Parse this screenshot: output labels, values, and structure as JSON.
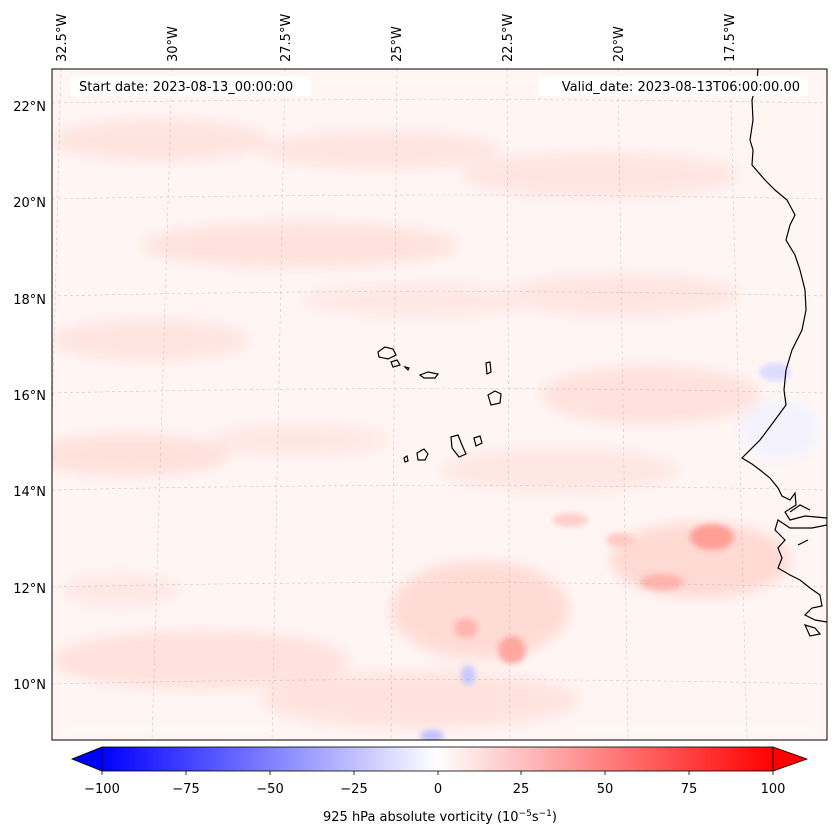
{
  "header": {
    "start_date": "Start date: 2023-08-13_00:00:00",
    "valid_date": "Valid_date: 2023-08-13T06:00:00.00"
  },
  "map": {
    "lon_labels": [
      "32.5°W",
      "30°W",
      "27.5°W",
      "25°W",
      "22.5°W",
      "20°W",
      "17.5°W"
    ],
    "lat_labels": [
      "22°N",
      "20°N",
      "18°N",
      "16°N",
      "14°N",
      "12°N",
      "10°N"
    ]
  },
  "colorbar": {
    "ticks": [
      "−100",
      "−75",
      "−50",
      "−25",
      "0",
      "25",
      "50",
      "75",
      "100"
    ],
    "label": "925 hPa absolute vorticity (10",
    "label_exp1": "−5",
    "label_mid": "s",
    "label_exp2": "−1",
    "label_end": ")",
    "min": -100,
    "max": 100,
    "extend": "both"
  },
  "colors": {
    "negative": "#0000ff",
    "zero": "#ffffff",
    "positive": "#ff0000",
    "coastline": "#000000",
    "gridline": "#bbbbbb"
  }
}
